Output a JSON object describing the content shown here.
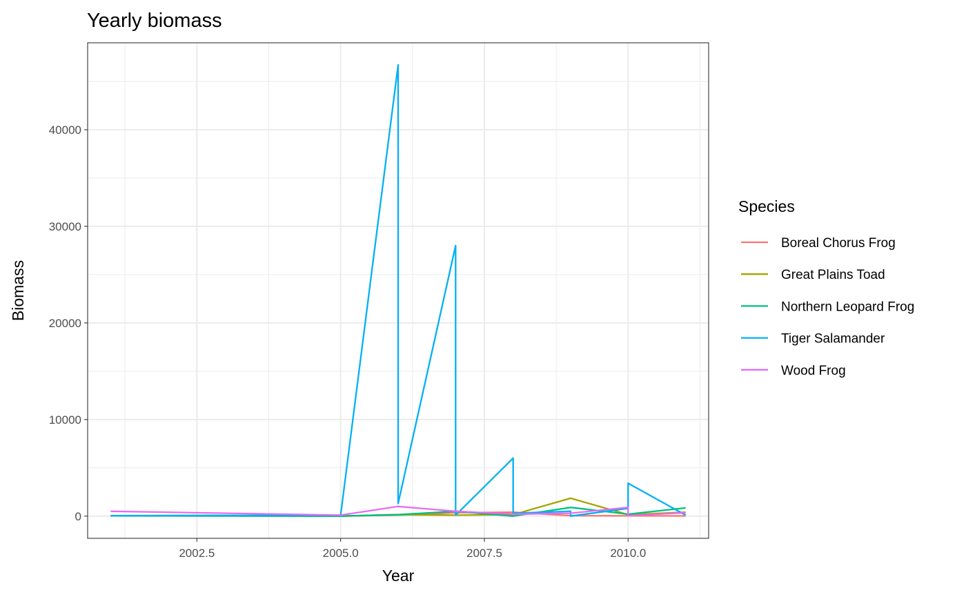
{
  "chart_data": {
    "type": "line",
    "title": "Yearly biomass",
    "xlabel": "Year",
    "ylabel": "Biomass",
    "xlim": [
      2000.6,
      2011.4
    ],
    "ylim": [
      -2300,
      49000
    ],
    "x_ticks": [
      2002.5,
      2005.0,
      2007.5,
      2010.0
    ],
    "x_tick_labels": [
      "2002.5",
      "2005.0",
      "2007.5",
      "2010.0"
    ],
    "y_ticks": [
      0,
      10000,
      20000,
      30000,
      40000
    ],
    "y_tick_labels": [
      "0",
      "10000",
      "20000",
      "30000",
      "40000"
    ],
    "grid": true,
    "legend": {
      "title": "Species",
      "position": "right"
    },
    "series": [
      {
        "name": "Boreal Chorus Frog",
        "color": "#F8766D",
        "points": [
          [
            2001,
            50
          ],
          [
            2005,
            20
          ],
          [
            2006,
            100
          ],
          [
            2007,
            350
          ],
          [
            2008,
            400
          ],
          [
            2009,
            50
          ],
          [
            2010,
            30
          ],
          [
            2011,
            20
          ]
        ]
      },
      {
        "name": "Great Plains Toad",
        "color": "#A3A500",
        "points": [
          [
            2005,
            0
          ],
          [
            2006,
            150
          ],
          [
            2007,
            100
          ],
          [
            2008,
            150
          ],
          [
            2009,
            1850
          ],
          [
            2010,
            150
          ],
          [
            2011,
            400
          ]
        ]
      },
      {
        "name": "Northern Leopard Frog",
        "color": "#00BF7D",
        "points": [
          [
            2001,
            30
          ],
          [
            2005,
            0
          ],
          [
            2006,
            150
          ],
          [
            2007,
            500
          ],
          [
            2008,
            0
          ],
          [
            2009,
            900
          ],
          [
            2010,
            200
          ],
          [
            2011,
            850
          ]
        ]
      },
      {
        "name": "Tiger Salamander",
        "color": "#00B0F6",
        "points": [
          [
            2001,
            50
          ],
          [
            2005,
            100
          ],
          [
            2006,
            46700
          ],
          [
            2006,
            1300
          ],
          [
            2007,
            28000
          ],
          [
            2007,
            100
          ],
          [
            2008,
            6000
          ],
          [
            2008,
            300
          ],
          [
            2009,
            500
          ],
          [
            2009,
            0
          ],
          [
            2010,
            800
          ],
          [
            2010,
            3400
          ],
          [
            2011,
            100
          ]
        ]
      },
      {
        "name": "Wood Frog",
        "color": "#E76BF3",
        "points": [
          [
            2001,
            500
          ],
          [
            2005,
            100
          ],
          [
            2006,
            1000
          ],
          [
            2007,
            500
          ],
          [
            2008,
            200
          ],
          [
            2009,
            300
          ],
          [
            2010,
            900
          ],
          [
            2010,
            50
          ],
          [
            2011,
            350
          ]
        ]
      }
    ]
  }
}
